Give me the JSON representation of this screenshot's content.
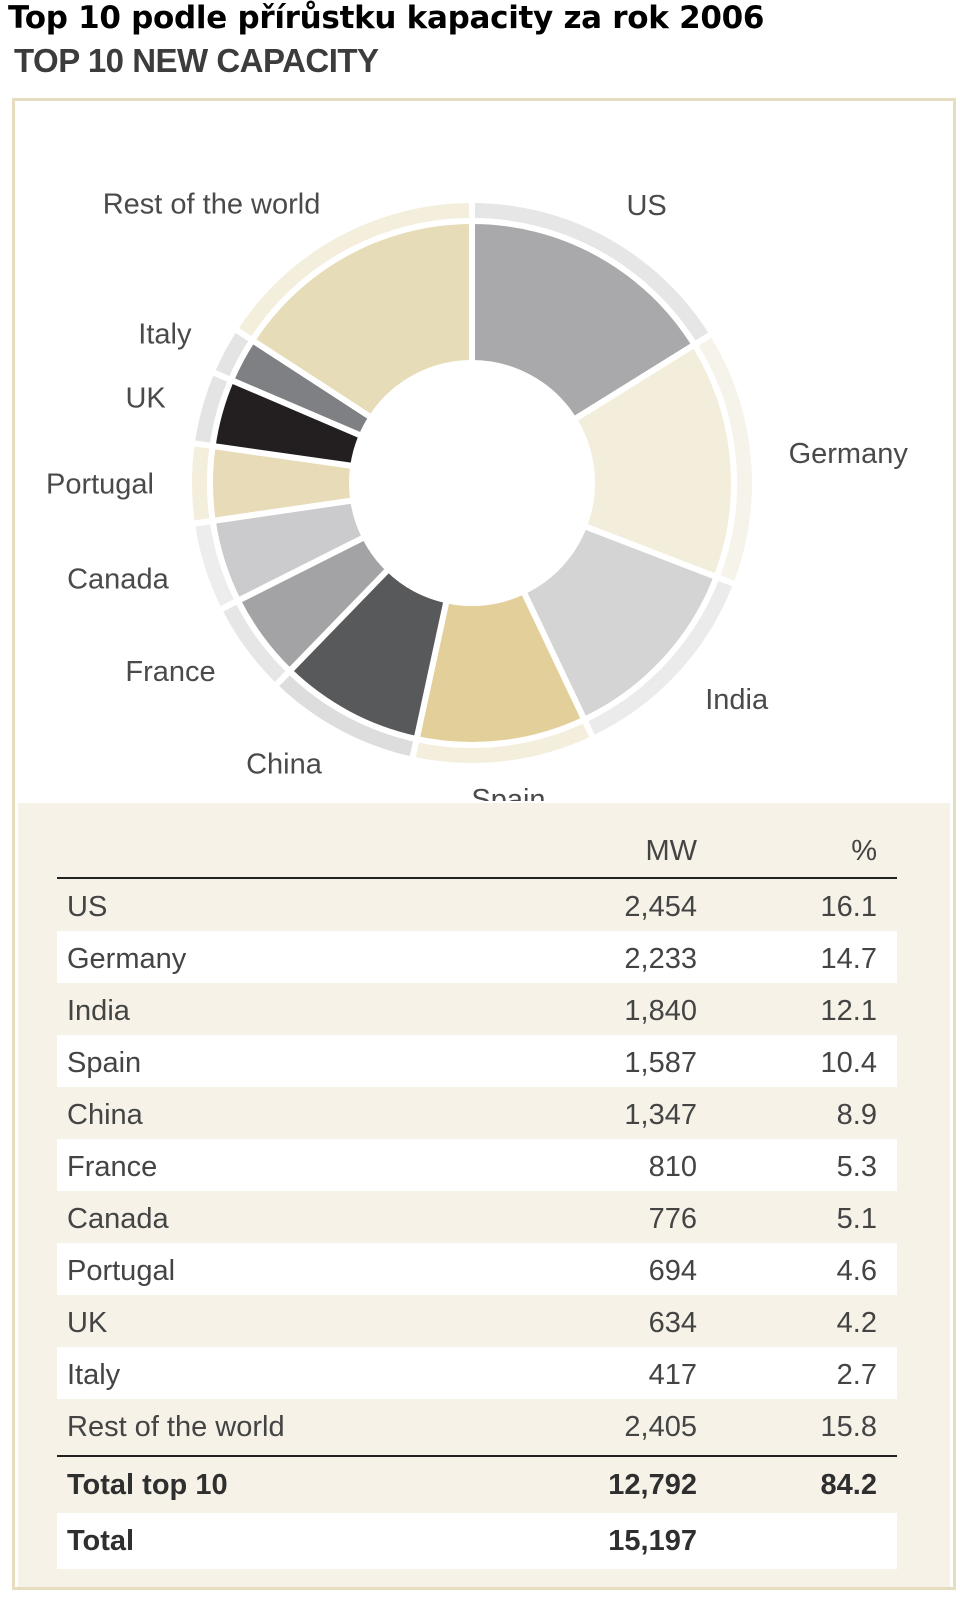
{
  "page": {
    "title": "Top 10 podle přírůstku kapacity za rok 2006",
    "chart_title": "TOP 10 NEW CAPACITY"
  },
  "table": {
    "header_mw": "MW",
    "header_pct": "%",
    "rows": [
      {
        "name": "US",
        "mw": "2,454",
        "pct": "16.1"
      },
      {
        "name": "Germany",
        "mw": "2,233",
        "pct": "14.7"
      },
      {
        "name": "India",
        "mw": "1,840",
        "pct": "12.1"
      },
      {
        "name": "Spain",
        "mw": "1,587",
        "pct": "10.4"
      },
      {
        "name": "China",
        "mw": "1,347",
        "pct": "8.9"
      },
      {
        "name": "France",
        "mw": "810",
        "pct": "5.3"
      },
      {
        "name": "Canada",
        "mw": "776",
        "pct": "5.1"
      },
      {
        "name": "Portugal",
        "mw": "694",
        "pct": "4.6"
      },
      {
        "name": "UK",
        "mw": "634",
        "pct": "4.2"
      },
      {
        "name": "Italy",
        "mw": "417",
        "pct": "2.7"
      },
      {
        "name": "Rest of the world",
        "mw": "2,405",
        "pct": "15.8"
      }
    ],
    "total_top10": {
      "name": "Total top 10",
      "mw": "12,792",
      "pct": "84.2"
    },
    "total": {
      "name": "Total",
      "mw": "15,197",
      "pct": ""
    }
  },
  "chart_data": {
    "type": "pie",
    "donut": true,
    "title": "TOP 10 NEW CAPACITY",
    "categories": [
      "US",
      "Germany",
      "India",
      "Spain",
      "China",
      "France",
      "Canada",
      "Portugal",
      "UK",
      "Italy",
      "Rest of the world"
    ],
    "values": [
      2454,
      2233,
      1840,
      1587,
      1347,
      810,
      776,
      694,
      634,
      417,
      2405
    ],
    "percent": [
      16.1,
      14.7,
      12.1,
      10.4,
      8.9,
      5.3,
      5.1,
      4.6,
      4.2,
      2.7,
      15.8
    ],
    "colors": [
      "#a9a9ab",
      "#f3eedb",
      "#d4d4d4",
      "#e2cf9a",
      "#58595b",
      "#a3a3a5",
      "#cbcbcd",
      "#e8dcb8",
      "#231f20",
      "#7f8083",
      "#e6dcb7"
    ],
    "outer_ring_colors": [
      "#e6e6e7",
      "#f6f3ea",
      "#ebebeb",
      "#f4eedd",
      "#dddddd",
      "#e6e6e7",
      "#ededed",
      "#f4eedd",
      "#e4e4e4",
      "#e4e4e4",
      "#f4eedd"
    ],
    "total_mw": 15197
  }
}
